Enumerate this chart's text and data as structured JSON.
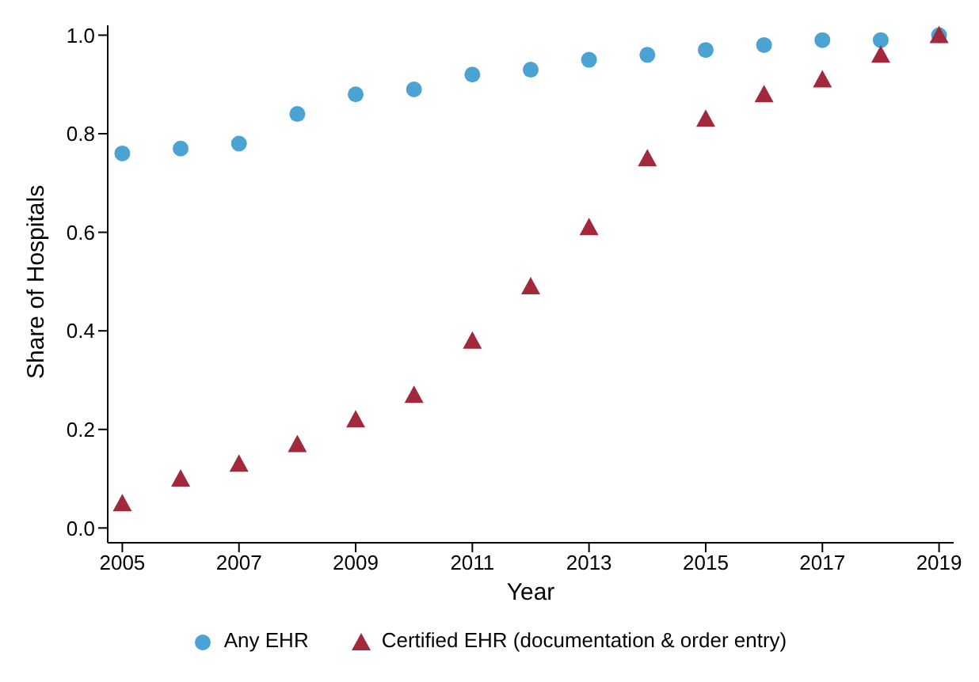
{
  "chart_data": {
    "type": "scatter",
    "xlabel": "Year",
    "ylabel": "Share of Hospitals",
    "x": [
      2005,
      2006,
      2007,
      2008,
      2009,
      2010,
      2011,
      2012,
      2013,
      2014,
      2015,
      2016,
      2017,
      2018,
      2019
    ],
    "series": [
      {
        "name": "Any EHR",
        "color": "#4aa3d3",
        "marker": "circle",
        "values": [
          0.76,
          0.77,
          0.78,
          0.84,
          0.88,
          0.89,
          0.92,
          0.93,
          0.95,
          0.96,
          0.97,
          0.98,
          0.99,
          0.99,
          1.0
        ]
      },
      {
        "name": "Certified EHR (documentation & order entry)",
        "color": "#a3283c",
        "marker": "triangle",
        "values": [
          0.05,
          0.1,
          0.13,
          0.17,
          0.22,
          0.27,
          0.38,
          0.49,
          0.61,
          0.75,
          0.83,
          0.88,
          0.91,
          0.96,
          1.0
        ]
      }
    ],
    "xlim": [
      2004.75,
      2019.25
    ],
    "xticks": [
      2005,
      2007,
      2009,
      2011,
      2013,
      2015,
      2017,
      2019
    ],
    "ylim": [
      -0.03,
      1.02
    ],
    "yticks": [
      {
        "value": 0,
        "label": "0.0"
      },
      {
        "value": 0.2,
        "label": "0.2"
      },
      {
        "value": 0.4,
        "label": "0.4"
      },
      {
        "value": 0.6,
        "label": "0.6"
      },
      {
        "value": 0.8,
        "label": "0.8"
      },
      {
        "value": 1,
        "label": "1.0"
      }
    ],
    "grid": false,
    "legend": "bottom"
  }
}
